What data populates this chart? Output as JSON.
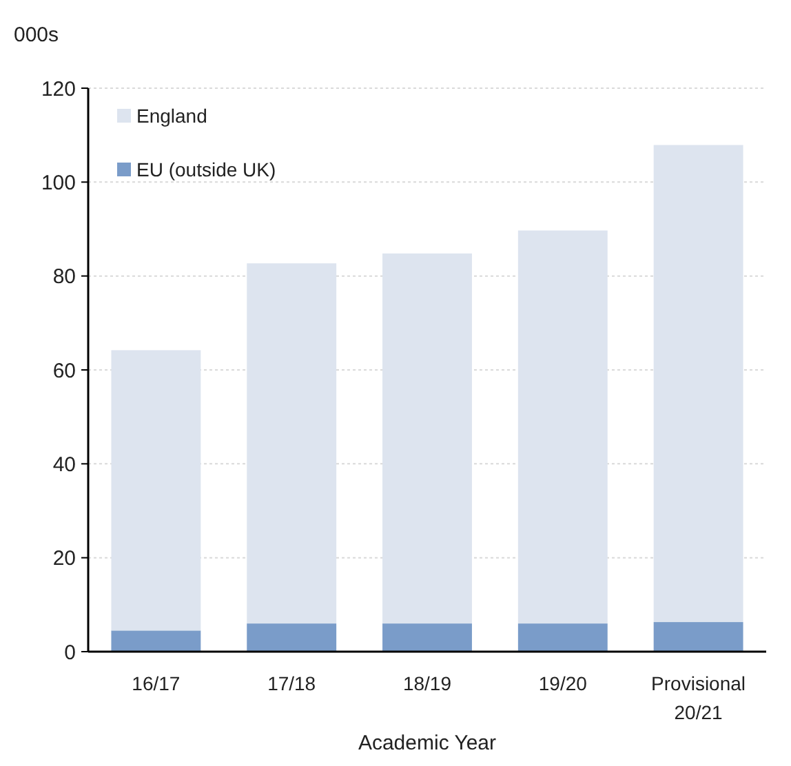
{
  "chart_data": {
    "type": "bar",
    "stacked": true,
    "xlabel": "Academic Year",
    "ylabel": "000s",
    "categories": [
      "16/17",
      "17/18",
      "18/19",
      "19/20",
      "Provisional 20/21"
    ],
    "series": [
      {
        "name": "EU (outside UK)",
        "color": "#7a9cc9",
        "values": [
          4.5,
          6.0,
          6.0,
          6.0,
          6.3
        ]
      },
      {
        "name": "England",
        "color": "#dde4ef",
        "values": [
          59.7,
          76.7,
          78.8,
          83.7,
          101.6
        ]
      }
    ],
    "ylim": [
      0,
      120
    ],
    "yticks": [
      0,
      20,
      40,
      60,
      80,
      100,
      120
    ],
    "grid": "y",
    "legend": "top left"
  }
}
